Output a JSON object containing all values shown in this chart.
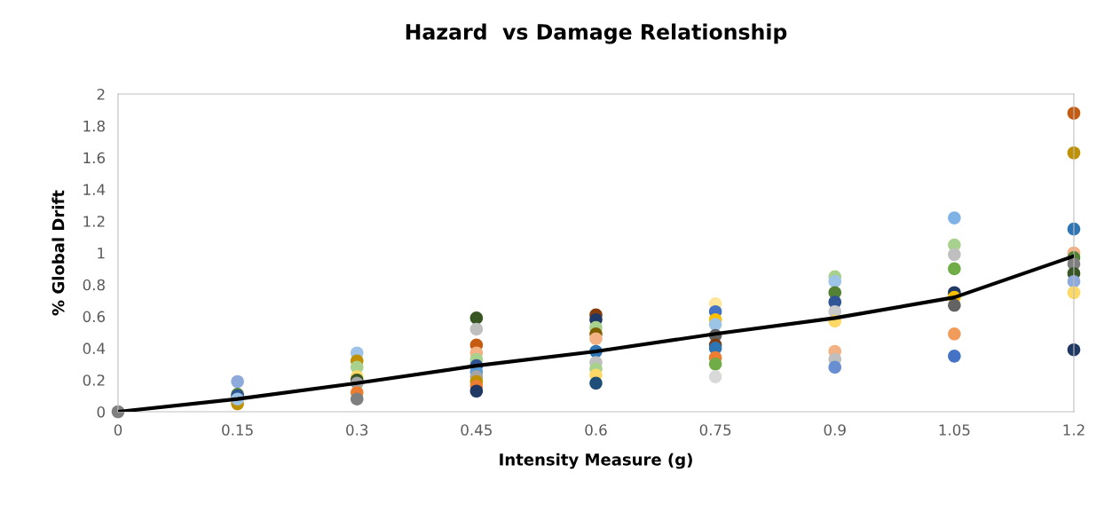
{
  "chart_data": {
    "type": "scatter",
    "title": "Hazard  vs Damage Relationship",
    "xlabel": "Intensity Measure (g)",
    "ylabel": "% Global Drift",
    "xlim": [
      0,
      1.2
    ],
    "xticks": [
      0,
      0.15,
      0.3,
      0.45,
      0.6,
      0.75,
      0.9,
      1.05,
      1.2
    ],
    "ylim": [
      0,
      2
    ],
    "yticks": [
      0,
      0.2,
      0.4,
      0.6,
      0.8,
      1,
      1.2,
      1.4,
      1.6,
      1.8,
      2
    ],
    "grid": false,
    "legend": false,
    "marker": "circle",
    "series": [
      {
        "x": [
          0,
          0.15,
          0.15,
          0.15,
          0.15,
          0.15,
          0.3,
          0.3,
          0.3,
          0.3,
          0.3,
          0.3,
          0.3,
          0.3,
          0.45,
          0.45,
          0.45,
          0.45,
          0.45,
          0.45,
          0.45,
          0.45,
          0.45,
          0.45,
          0.45,
          0.6,
          0.6,
          0.6,
          0.6,
          0.6,
          0.6,
          0.6,
          0.6,
          0.6,
          0.6,
          0.75,
          0.75,
          0.75,
          0.75,
          0.75,
          0.75,
          0.75,
          0.75,
          0.75,
          0.75,
          0.9,
          0.9,
          0.9,
          0.9,
          0.9,
          0.9,
          0.9,
          0.9,
          0.9,
          1.05,
          1.05,
          1.05,
          1.05,
          1.05,
          1.05,
          1.05,
          1.05,
          1.05,
          1.2,
          1.2,
          1.2,
          1.2,
          1.2,
          1.2,
          1.2,
          1.2,
          1.2,
          1.2
        ],
        "values": [
          0,
          0.19,
          0.11,
          0.1,
          0.05,
          0.08,
          0.37,
          0.32,
          0.28,
          0.22,
          0.2,
          0.18,
          0.12,
          0.08,
          0.59,
          0.52,
          0.42,
          0.37,
          0.33,
          0.29,
          0.25,
          0.22,
          0.19,
          0.16,
          0.13,
          0.61,
          0.58,
          0.53,
          0.49,
          0.46,
          0.38,
          0.31,
          0.27,
          0.23,
          0.18,
          0.68,
          0.63,
          0.58,
          0.55,
          0.48,
          0.42,
          0.4,
          0.34,
          0.3,
          0.22,
          0.85,
          0.82,
          0.75,
          0.69,
          0.63,
          0.57,
          0.38,
          0.33,
          0.28,
          1.22,
          1.05,
          0.99,
          0.9,
          0.75,
          0.72,
          0.67,
          0.49,
          0.35,
          1.88,
          1.63,
          1.15,
          1,
          0.97,
          0.93,
          0.87,
          0.82,
          0.75,
          0.39
        ],
        "colors": [
          "#7f7f7f",
          "#8eaadb",
          "#548235",
          "#2f5597",
          "#bf9000",
          "#9dc3e6",
          "#9dc3e6",
          "#bf9000",
          "#a9d18e",
          "#ffd966",
          "#375623",
          "#a5a5a5",
          "#ed7d31",
          "#7f7f7f",
          "#375623",
          "#bfbfbf",
          "#c55a11",
          "#f4b183",
          "#a9d18e",
          "#2f5597",
          "#5b9bd5",
          "#a5a5a5",
          "#bf9000",
          "#ed7d31",
          "#203864",
          "#843c0c",
          "#203864",
          "#a9d18e",
          "#7f6000",
          "#f4b183",
          "#2e75b6",
          "#bfbfbf",
          "#a9d18e",
          "#ffd966",
          "#1f4e79",
          "#ffe699",
          "#4472c4",
          "#ffc000",
          "#9dc3e6",
          "#636363",
          "#843c0c",
          "#2e75b6",
          "#ed7d31",
          "#70ad47",
          "#d9d9d9",
          "#a9d18e",
          "#9dc3e6",
          "#548235",
          "#2f5597",
          "#c9c9c9",
          "#ffd966",
          "#f4b183",
          "#bfbfbf",
          "#6a8fd0",
          "#7fb2e5",
          "#a9d18e",
          "#bfbfbf",
          "#70ad47",
          "#203864",
          "#ffc000",
          "#636363",
          "#f19c5a",
          "#4472c4",
          "#c55a11",
          "#bf9000",
          "#2e75b6",
          "#f4b183",
          "#548235",
          "#7f7f7f",
          "#375623",
          "#8faadc",
          "#ffd966",
          "#203864"
        ]
      },
      {
        "type": "line",
        "color": "#000000",
        "marker": "none",
        "line_style": "solid",
        "x": [
          0,
          0.15,
          0.3,
          0.45,
          0.6,
          0.75,
          0.9,
          1.05,
          1.2
        ],
        "values": [
          0,
          0.08,
          0.18,
          0.29,
          0.38,
          0.49,
          0.59,
          0.72,
          0.98
        ]
      }
    ]
  }
}
